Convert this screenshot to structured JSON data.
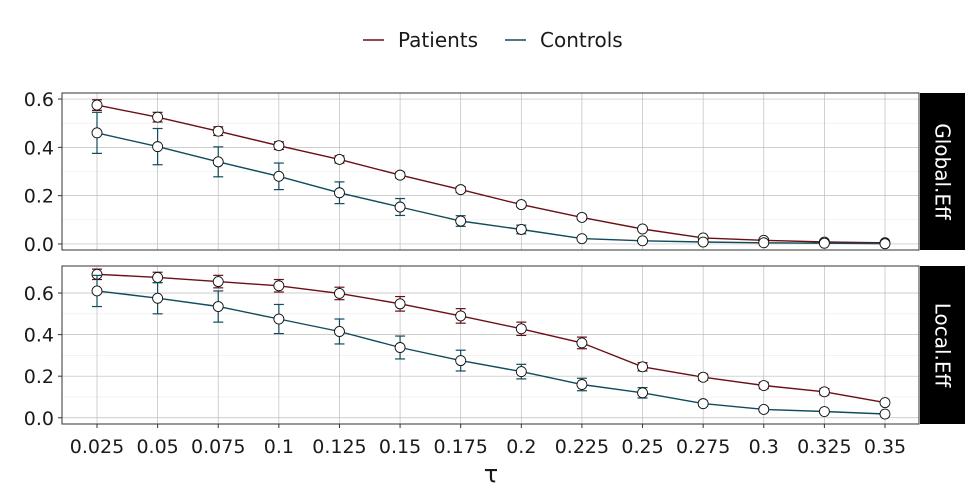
{
  "chart_data": {
    "type": "line",
    "xlabel": "τ",
    "x": [
      0.025,
      0.05,
      0.075,
      0.1,
      0.125,
      0.15,
      0.175,
      0.2,
      0.225,
      0.25,
      0.275,
      0.3,
      0.325,
      0.35
    ],
    "x_tick_labels": [
      "0.025",
      "0.05",
      "0.075",
      "0.1",
      "0.125",
      "0.15",
      "0.175",
      "0.2",
      "0.225",
      "0.25",
      "0.275",
      "0.3",
      "0.325",
      "0.35"
    ],
    "legend": {
      "placement": "top-center"
    },
    "grid": true,
    "colors": {
      "Patients": "#6b0f14",
      "Controls": "#0f4c5c"
    },
    "panels": [
      {
        "strip": "Global.Eff",
        "ylim": [
          -0.025,
          0.625
        ],
        "y_ticks": [
          0.0,
          0.2,
          0.4,
          0.6
        ],
        "y_tick_labels": [
          "0.0",
          "0.2",
          "0.4",
          "0.6"
        ],
        "series": [
          {
            "name": "Patients",
            "values": [
              0.575,
              0.525,
              0.467,
              0.407,
              0.35,
              0.285,
              0.225,
              0.163,
              0.11,
              0.062,
              0.025,
              0.015,
              0.008,
              0.005
            ],
            "err": [
              0.022,
              0.02,
              0.018,
              0.016,
              0.015,
              0.012,
              0.012,
              0.01,
              0.01,
              0.008,
              0.006,
              0.005,
              0.004,
              0.003
            ]
          },
          {
            "name": "Controls",
            "values": [
              0.46,
              0.403,
              0.34,
              0.28,
              0.212,
              0.153,
              0.095,
              0.06,
              0.022,
              0.013,
              0.008,
              0.005,
              0.003,
              0.001
            ],
            "err": [
              0.085,
              0.075,
              0.062,
              0.055,
              0.045,
              0.035,
              0.022,
              0.018,
              0.008,
              0.006,
              0.004,
              0.003,
              0.002,
              0.001
            ]
          }
        ]
      },
      {
        "strip": "Local.Eff",
        "ylim": [
          -0.03,
          0.73
        ],
        "y_ticks": [
          0.0,
          0.2,
          0.4,
          0.6
        ],
        "y_tick_labels": [
          "0.0",
          "0.2",
          "0.4",
          "0.6"
        ],
        "series": [
          {
            "name": "Patients",
            "values": [
              0.69,
              0.675,
              0.655,
              0.635,
              0.598,
              0.548,
              0.49,
              0.428,
              0.36,
              0.245,
              0.195,
              0.155,
              0.125,
              0.073
            ],
            "err": [
              0.025,
              0.025,
              0.03,
              0.03,
              0.03,
              0.035,
              0.035,
              0.032,
              0.028,
              0.02,
              0.015,
              0.015,
              0.015,
              0.01
            ]
          },
          {
            "name": "Controls",
            "values": [
              0.61,
              0.575,
              0.535,
              0.475,
              0.415,
              0.338,
              0.275,
              0.222,
              0.16,
              0.12,
              0.068,
              0.04,
              0.03,
              0.018
            ],
            "err": [
              0.075,
              0.075,
              0.075,
              0.07,
              0.06,
              0.055,
              0.05,
              0.035,
              0.03,
              0.025,
              0.012,
              0.01,
              0.008,
              0.006
            ]
          }
        ]
      }
    ]
  }
}
